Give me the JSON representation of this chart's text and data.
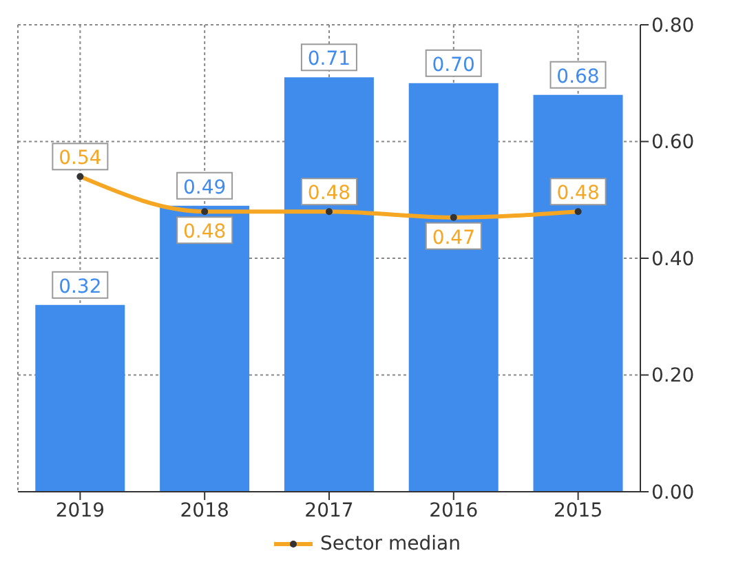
{
  "chart_data": {
    "type": "bar",
    "categories": [
      "2019",
      "2018",
      "2017",
      "2016",
      "2015"
    ],
    "series": [
      {
        "color": "#3f8ced",
        "values": [
          0.32,
          0.49,
          0.71,
          0.7,
          0.68
        ],
        "value_labels": [
          "0.32",
          "0.49",
          "0.71",
          "0.70",
          "0.68"
        ]
      },
      {
        "type": "line",
        "name": "Sector median",
        "color": "#f5a623",
        "values": [
          0.54,
          0.48,
          0.48,
          0.47,
          0.48
        ],
        "value_labels": [
          "0.54",
          "0.48",
          "0.48",
          "0.47",
          "0.48"
        ]
      }
    ],
    "ylim": [
      0,
      0.8
    ],
    "yticks": [
      {
        "value": 0,
        "label": "0.00"
      },
      {
        "value": 0.2,
        "label": "0.20"
      },
      {
        "value": 0.4,
        "label": "0.40"
      },
      {
        "value": 0.6,
        "label": "0.60"
      },
      {
        "value": 0.8,
        "label": "0.80"
      }
    ],
    "grid": true,
    "legend": "bottom",
    "marker": "circle",
    "line_style": "solid"
  }
}
